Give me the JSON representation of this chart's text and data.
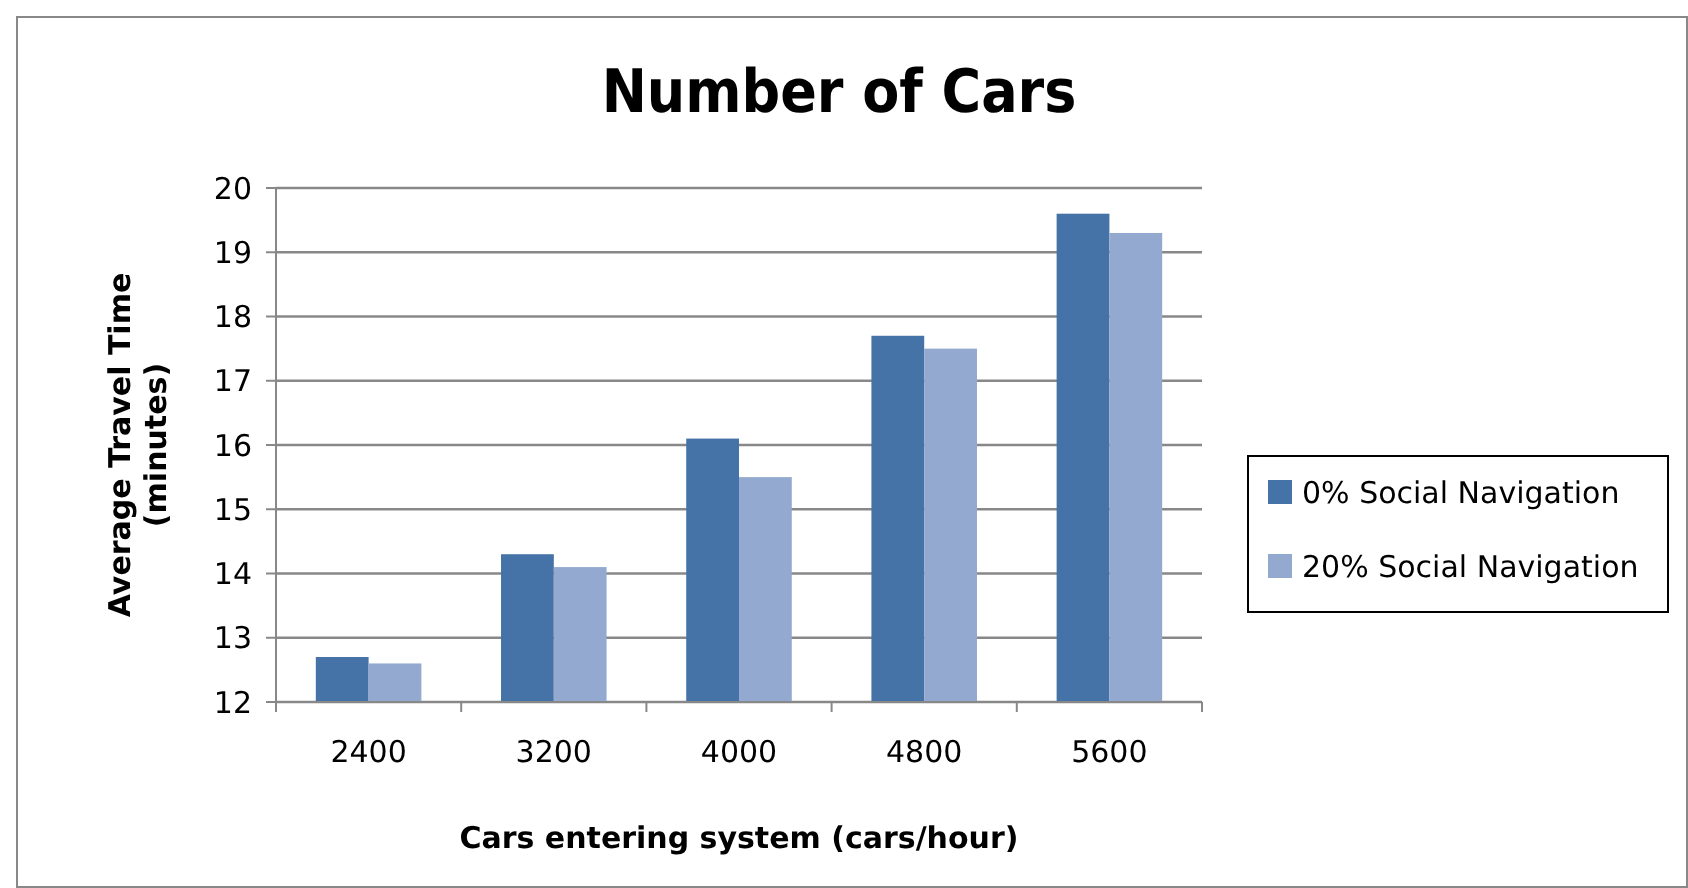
{
  "chart_data": {
    "type": "bar",
    "title": "Number of Cars",
    "xlabel": "Cars entering system (cars/hour)",
    "ylabel": "Average Travel Time (minutes)",
    "categories": [
      "2400",
      "3200",
      "4000",
      "4800",
      "5600"
    ],
    "series": [
      {
        "name": "0% Social Navigation",
        "color": "#4572a7",
        "values": [
          12.7,
          14.3,
          16.1,
          17.7,
          19.6
        ]
      },
      {
        "name": "20% Social Navigation",
        "color": "#93a9cf",
        "values": [
          12.6,
          14.1,
          15.5,
          17.5,
          19.3
        ]
      }
    ],
    "ylim": [
      12,
      20
    ],
    "yticks": [
      12,
      13,
      14,
      15,
      16,
      17,
      18,
      19,
      20
    ],
    "grid": "y",
    "legend": "right"
  }
}
